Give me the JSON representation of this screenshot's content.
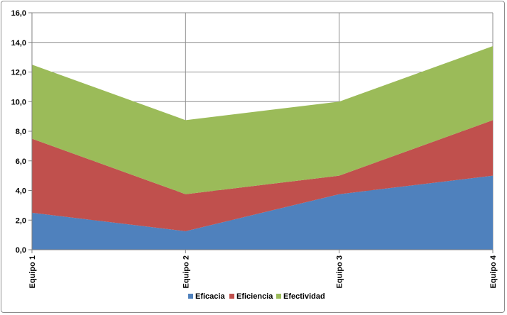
{
  "chart_data": {
    "type": "area",
    "stacked": true,
    "categories": [
      "Equipo 1",
      "Equipo 2",
      "Equipo 3",
      "Equipo 4"
    ],
    "series": [
      {
        "name": "Eficacia",
        "values": [
          2.5,
          1.25,
          3.75,
          5.0
        ],
        "color": "#4f81bd"
      },
      {
        "name": "Eficiencia",
        "values": [
          5.0,
          2.5,
          1.25,
          3.75
        ],
        "color": "#c0504d"
      },
      {
        "name": "Efectividad",
        "values": [
          5.0,
          5.0,
          5.0,
          5.0
        ],
        "color": "#9bbb59"
      }
    ],
    "y_ticks": [
      "0,0",
      "2,0",
      "4,0",
      "6,0",
      "8,0",
      "10,0",
      "12,0",
      "14,0",
      "16,0"
    ],
    "ylim": [
      0,
      16
    ],
    "grid": true,
    "legend_position": "bottom"
  }
}
